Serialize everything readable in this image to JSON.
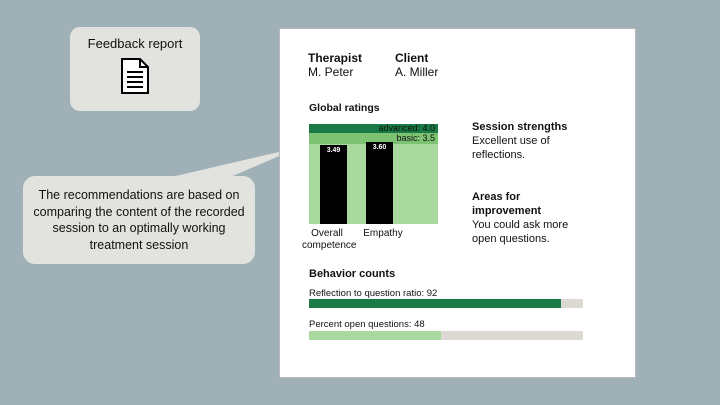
{
  "label_box": {
    "text": "Feedback report",
    "icon": "document-icon"
  },
  "callout": {
    "text": "The recommendations are based on comparing the content of the recorded session to an optimally working treatment session"
  },
  "report": {
    "therapist": {
      "label": "Therapist",
      "value": "M. Peter"
    },
    "client": {
      "label": "Client",
      "value": "A. Miller"
    },
    "global_ratings_title": "Global ratings",
    "strengths": {
      "title": "Session strengths",
      "text": "Excellent use of reflections."
    },
    "improvement": {
      "title": "Areas for improvement",
      "text": "You could ask more open questions."
    },
    "behavior_title": "Behavior counts",
    "behavior": [
      {
        "label": "Reflection to question ratio: 92",
        "value": 92,
        "color": "#1a7a45"
      },
      {
        "label": "Percent open questions: 48",
        "value": 48,
        "color": "#aad9a0"
      }
    ]
  },
  "colors": {
    "advanced": "#1a7a45",
    "basic": "#7cc272",
    "base": "#aad9a0",
    "bar": "#000000",
    "track": "#dcd9d5"
  },
  "chart_data": {
    "type": "bar",
    "title": "Global ratings",
    "categories": [
      "Overall competence",
      "Empathy"
    ],
    "values": [
      3.49,
      3.6
    ],
    "value_labels": [
      "3.49",
      "3.60"
    ],
    "ylim": [
      0,
      4.4
    ],
    "thresholds": [
      {
        "name": "basic",
        "label": "basic: 3.5",
        "value": 3.5
      },
      {
        "name": "advanced",
        "label": "advanced: 4.0",
        "value": 4.0
      }
    ]
  }
}
